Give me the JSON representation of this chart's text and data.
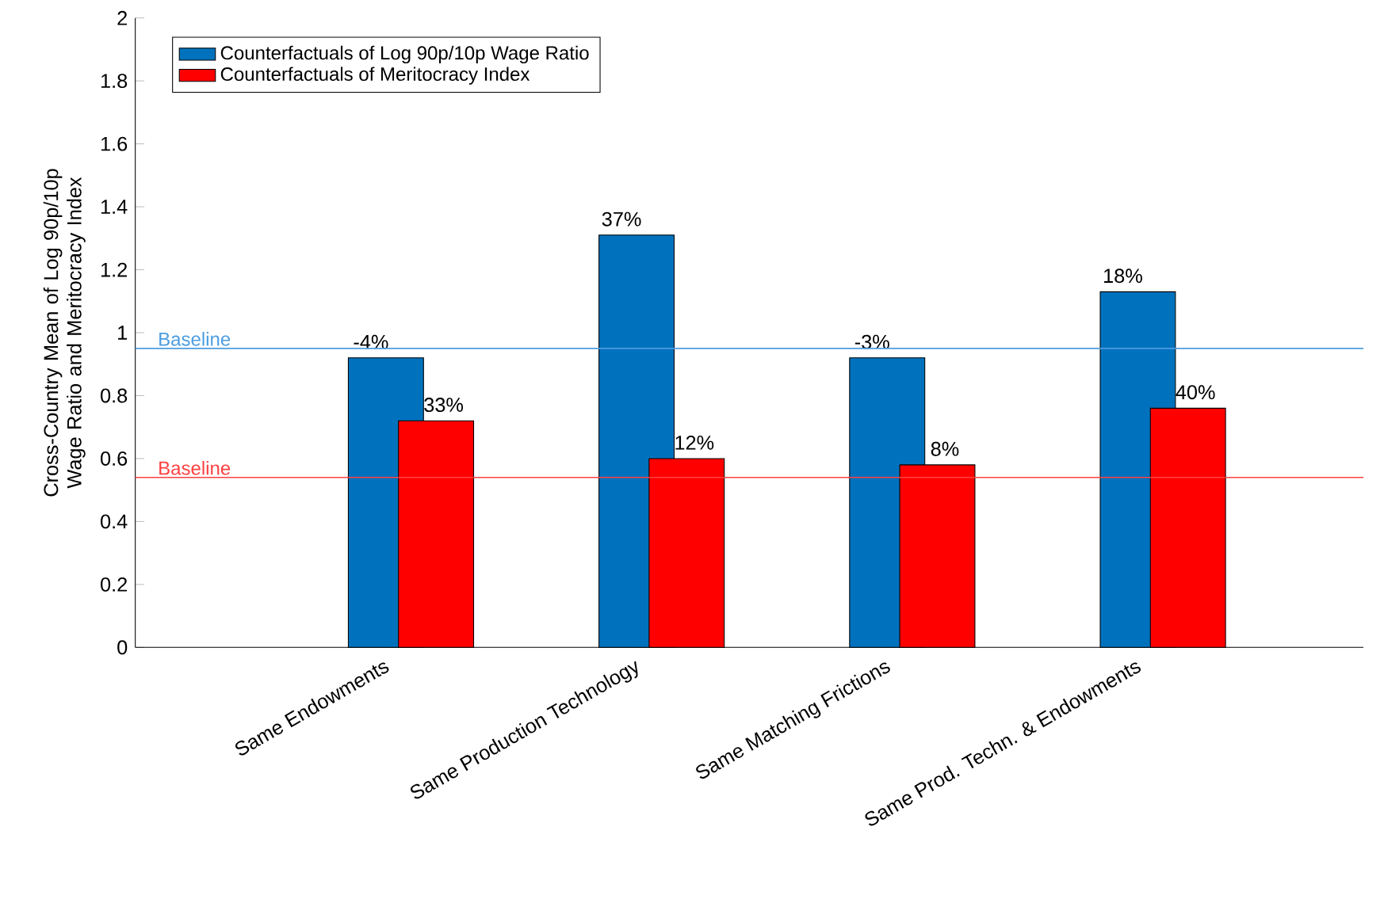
{
  "chart_data": {
    "type": "bar",
    "ylabel": "Cross-Country Mean of Log 90p/10p Wage Ratio and Meritocracy Index",
    "categories": [
      "Same Endowments",
      "Same Production Technology",
      "Same Matching Frictions",
      "Same Prod. Techn. & Endowments"
    ],
    "series": [
      {
        "name": "Counterfactuals of Log 90p/10p Wage Ratio",
        "color": "#0072bd",
        "values": [
          0.92,
          1.31,
          0.92,
          1.13
        ]
      },
      {
        "name": "Counterfactuals of Meritocracy Index",
        "color": "#ff0000",
        "values": [
          0.72,
          0.6,
          0.58,
          0.76
        ]
      }
    ],
    "annotations": [
      "-4%",
      "37%",
      "-3%",
      "18%",
      "33%",
      "12%",
      "8%",
      "40%"
    ],
    "ylim": [
      0,
      2
    ],
    "yticks": [
      0,
      0.2,
      0.4,
      0.6,
      0.8,
      1,
      1.2,
      1.4,
      1.6,
      1.8,
      2
    ],
    "ref_lines": [
      {
        "axis": "y",
        "value": 0.95,
        "label": "Baseline",
        "color": "#4d9de0"
      },
      {
        "axis": "y",
        "value": 0.54,
        "label": "Baseline",
        "color": "#ff4040"
      }
    ],
    "legend": "top left",
    "grid": false
  }
}
